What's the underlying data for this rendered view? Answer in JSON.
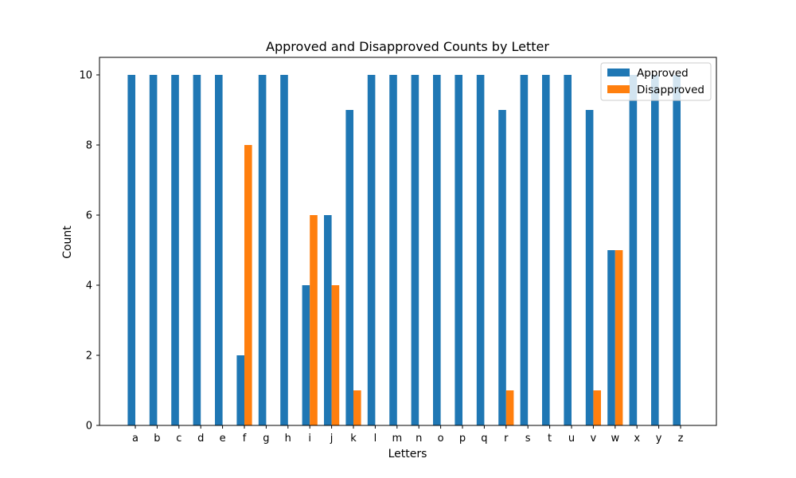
{
  "chart_data": {
    "type": "bar",
    "title": "Approved and Disapproved Counts by Letter",
    "xlabel": "Letters",
    "ylabel": "Count",
    "categories": [
      "a",
      "b",
      "c",
      "d",
      "e",
      "f",
      "g",
      "h",
      "i",
      "j",
      "k",
      "l",
      "m",
      "n",
      "o",
      "p",
      "q",
      "r",
      "s",
      "t",
      "u",
      "v",
      "w",
      "x",
      "y",
      "z"
    ],
    "series": [
      {
        "name": "Approved",
        "color": "#1f77b4",
        "values": [
          10,
          10,
          10,
          10,
          10,
          2,
          10,
          10,
          4,
          6,
          9,
          10,
          10,
          10,
          10,
          10,
          10,
          9,
          10,
          10,
          10,
          9,
          5,
          10,
          10,
          10
        ]
      },
      {
        "name": "Disapproved",
        "color": "#ff7f0e",
        "values": [
          0,
          0,
          0,
          0,
          0,
          8,
          0,
          0,
          6,
          4,
          1,
          0,
          0,
          0,
          0,
          0,
          0,
          1,
          0,
          0,
          0,
          1,
          5,
          0,
          0,
          0
        ]
      }
    ],
    "yticks": [
      0,
      2,
      4,
      6,
      8,
      10
    ],
    "ylim": [
      0,
      10.5
    ],
    "grid": false,
    "legend_position": "top-right"
  }
}
